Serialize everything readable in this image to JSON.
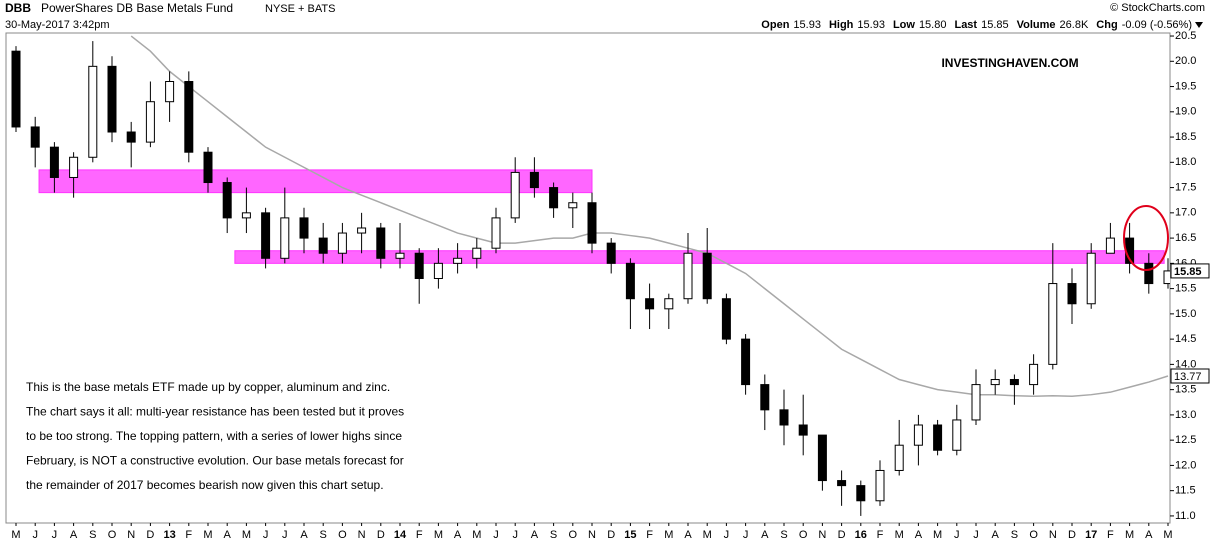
{
  "chart_data": {
    "type": "candlestick",
    "symbol": "DBB",
    "title": "PowerShares DB Base Metals Fund",
    "exchange": "NYSE + BATS",
    "date": "30-May-2017 3:42pm",
    "source": "© StockCharts.com",
    "quote": [
      {
        "label": "Open",
        "value": "15.93"
      },
      {
        "label": "High",
        "value": "15.93"
      },
      {
        "label": "Low",
        "value": "15.80"
      },
      {
        "label": "Last",
        "value": "15.85"
      },
      {
        "label": "Volume",
        "value": "26.8K"
      },
      {
        "label": "Chg",
        "value": "-0.09 (-0.56%)"
      }
    ],
    "watermark": "INVESTINGHAVEN.COM",
    "annotation": [
      "This is the base metals ETF made up by copper, aluminum and zinc.",
      "The chart says it all: multi-year resistance has been tested but it proves",
      "to be too strong. The topping pattern, with a series of lower highs since",
      "February, is NOT a constructive evolution. Our base metals forecast for",
      "the remainder of 2017 becomes bearish now given this chart setup."
    ],
    "categories": [
      "M",
      "J",
      "J",
      "A",
      "S",
      "O",
      "N",
      "D",
      "13",
      "F",
      "M",
      "A",
      "M",
      "J",
      "J",
      "A",
      "S",
      "O",
      "N",
      "D",
      "14",
      "F",
      "M",
      "A",
      "M",
      "J",
      "J",
      "A",
      "S",
      "O",
      "N",
      "D",
      "15",
      "F",
      "M",
      "A",
      "M",
      "J",
      "J",
      "A",
      "S",
      "O",
      "N",
      "D",
      "16",
      "F",
      "M",
      "A",
      "M",
      "J",
      "J",
      "A",
      "S",
      "O",
      "N",
      "D",
      "17",
      "F",
      "M",
      "A",
      "M"
    ],
    "open": [
      20.2,
      18.7,
      18.3,
      17.7,
      18.1,
      19.9,
      18.6,
      18.4,
      19.2,
      19.6,
      18.2,
      17.6,
      16.9,
      17.0,
      16.1,
      16.9,
      16.5,
      16.2,
      16.6,
      16.7,
      16.1,
      16.2,
      15.7,
      16.0,
      16.1,
      16.3,
      16.9,
      17.8,
      17.5,
      17.1,
      17.2,
      16.4,
      16.0,
      15.3,
      15.1,
      15.3,
      16.2,
      15.3,
      14.5,
      13.6,
      13.1,
      12.8,
      12.6,
      11.7,
      11.6,
      11.3,
      11.9,
      12.4,
      12.8,
      12.3,
      12.9,
      13.6,
      13.7,
      13.6,
      14.0,
      15.6,
      15.2,
      16.2,
      16.5,
      16.0,
      15.6
    ],
    "high": [
      20.3,
      18.9,
      18.4,
      18.2,
      20.4,
      20.1,
      18.8,
      19.6,
      19.8,
      19.8,
      18.3,
      17.7,
      17.5,
      17.1,
      17.5,
      17.1,
      16.8,
      16.8,
      17.0,
      16.8,
      16.8,
      16.3,
      16.3,
      16.4,
      16.5,
      17.1,
      18.1,
      18.1,
      17.6,
      17.4,
      17.4,
      16.5,
      16.1,
      15.6,
      15.4,
      16.6,
      16.7,
      15.4,
      14.6,
      13.8,
      13.5,
      13.4,
      12.6,
      11.9,
      11.7,
      12.1,
      12.9,
      13.0,
      12.9,
      13.2,
      13.9,
      13.9,
      13.8,
      14.2,
      16.4,
      15.9,
      16.4,
      16.8,
      16.8,
      16.2,
      16.1
    ],
    "low": [
      18.6,
      17.9,
      17.4,
      17.3,
      18.0,
      18.4,
      17.9,
      18.3,
      18.8,
      18.0,
      17.4,
      16.6,
      16.6,
      15.9,
      16.0,
      16.2,
      16.0,
      16.0,
      16.2,
      15.9,
      15.9,
      15.2,
      15.5,
      15.8,
      15.9,
      16.2,
      16.8,
      17.3,
      16.9,
      16.7,
      16.2,
      15.8,
      14.7,
      14.7,
      14.7,
      15.2,
      15.2,
      14.4,
      13.4,
      12.7,
      12.4,
      12.2,
      11.5,
      11.2,
      11.0,
      11.2,
      11.8,
      12.0,
      12.2,
      12.2,
      12.8,
      13.4,
      13.2,
      13.4,
      13.9,
      14.8,
      15.1,
      16.2,
      15.8,
      15.4,
      15.5
    ],
    "close": [
      18.7,
      18.3,
      17.7,
      18.1,
      19.9,
      18.6,
      18.4,
      19.2,
      19.6,
      18.2,
      17.6,
      16.9,
      17.0,
      16.1,
      16.9,
      16.5,
      16.2,
      16.6,
      16.7,
      16.1,
      16.2,
      15.7,
      16.0,
      16.1,
      16.3,
      16.9,
      17.8,
      17.5,
      17.1,
      17.2,
      16.4,
      16.0,
      15.3,
      15.1,
      15.3,
      16.2,
      15.3,
      14.5,
      13.6,
      13.1,
      12.8,
      12.6,
      11.7,
      11.6,
      11.3,
      11.9,
      12.4,
      12.8,
      12.3,
      12.9,
      13.6,
      13.7,
      13.6,
      14.0,
      15.6,
      15.2,
      16.2,
      16.5,
      16.0,
      15.6,
      15.85
    ],
    "candle_color": "#000000",
    "moving_average": {
      "color": "#a8a8a8",
      "values": [
        null,
        null,
        null,
        null,
        null,
        null,
        20.5,
        20.2,
        19.8,
        19.5,
        19.2,
        18.9,
        18.6,
        18.3,
        18.1,
        17.9,
        17.7,
        17.5,
        17.35,
        17.2,
        17.05,
        16.9,
        16.75,
        16.6,
        16.5,
        16.4,
        16.4,
        16.45,
        16.5,
        16.5,
        16.6,
        16.6,
        16.55,
        16.5,
        16.4,
        16.3,
        16.2,
        16.0,
        15.8,
        15.5,
        15.2,
        14.9,
        14.6,
        14.3,
        14.1,
        13.9,
        13.7,
        13.6,
        13.5,
        13.45,
        13.4,
        13.4,
        13.38,
        13.37,
        13.38,
        13.37,
        13.4,
        13.45,
        13.55,
        13.65,
        13.77
      ]
    },
    "bands": [
      {
        "start": 1.2,
        "end": 30,
        "low": 17.4,
        "high": 17.85,
        "color": "#ff33ff"
      },
      {
        "start": 11.4,
        "end": 59.8,
        "low": 16.0,
        "high": 16.25,
        "color": "#ff33ff"
      }
    ],
    "ylim": [
      10.86,
      20.56
    ],
    "yticks": [
      {
        "value": 11,
        "label": "11.0"
      },
      {
        "value": 11.5,
        "label": "11.5"
      },
      {
        "value": 12,
        "label": "12.0"
      },
      {
        "value": 12.5,
        "label": "12.5"
      },
      {
        "value": 13,
        "label": "13.0"
      },
      {
        "value": 13.5,
        "label": "13.5"
      },
      {
        "value": 14,
        "label": "14.0"
      },
      {
        "value": 14.5,
        "label": "14.5"
      },
      {
        "value": 15,
        "label": "15.0"
      },
      {
        "value": 15.5,
        "label": "15.5"
      },
      {
        "value": 16,
        "label": "16.0"
      },
      {
        "value": 16.5,
        "label": "16.5"
      },
      {
        "value": 17,
        "label": "17.0"
      },
      {
        "value": 17.5,
        "label": "17.5"
      },
      {
        "value": 18,
        "label": "18.0"
      },
      {
        "value": 18.5,
        "label": "18.5"
      },
      {
        "value": 19,
        "label": "19.0"
      },
      {
        "value": 19.5,
        "label": "19.5"
      },
      {
        "value": 20,
        "label": "20.0"
      },
      {
        "value": 20.5,
        "label": "20.5"
      }
    ],
    "grid": false
  }
}
